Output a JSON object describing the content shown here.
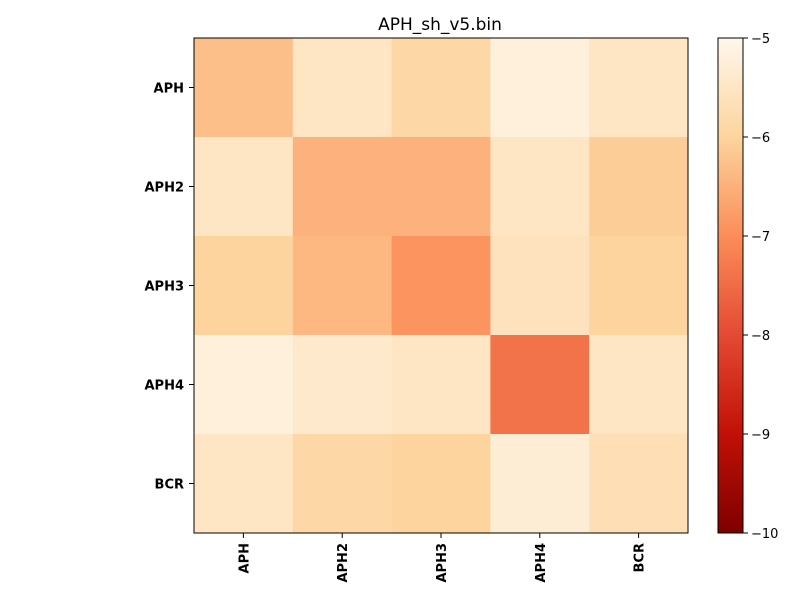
{
  "chart_data": {
    "type": "heatmap",
    "title": "APH_sh_v5.bin",
    "xlabel": "",
    "ylabel": "",
    "x_categories": [
      "APH",
      "APH2",
      "APH3",
      "APH4",
      "BCR"
    ],
    "y_categories": [
      "APH",
      "APH2",
      "APH3",
      "APH4",
      "BCR"
    ],
    "values": [
      [
        -6.3,
        -5.5,
        -5.9,
        -5.2,
        -5.5
      ],
      [
        -5.5,
        -6.5,
        -6.5,
        -5.5,
        -6.1
      ],
      [
        -6.0,
        -6.4,
        -6.9,
        -5.6,
        -6.0
      ],
      [
        -5.2,
        -5.4,
        -5.5,
        -7.4,
        -5.5
      ],
      [
        -5.5,
        -5.9,
        -6.0,
        -5.3,
        -5.7
      ]
    ],
    "colorbar": {
      "label": "",
      "min": -10,
      "max": -5,
      "ticks": [
        -5,
        -6,
        -7,
        -8,
        -9,
        -10
      ],
      "tick_labels": [
        "−5",
        "−6",
        "−7",
        "−8",
        "−9",
        "−10"
      ],
      "colormap": "OrRd_r"
    },
    "grid": false,
    "legend": "none"
  }
}
